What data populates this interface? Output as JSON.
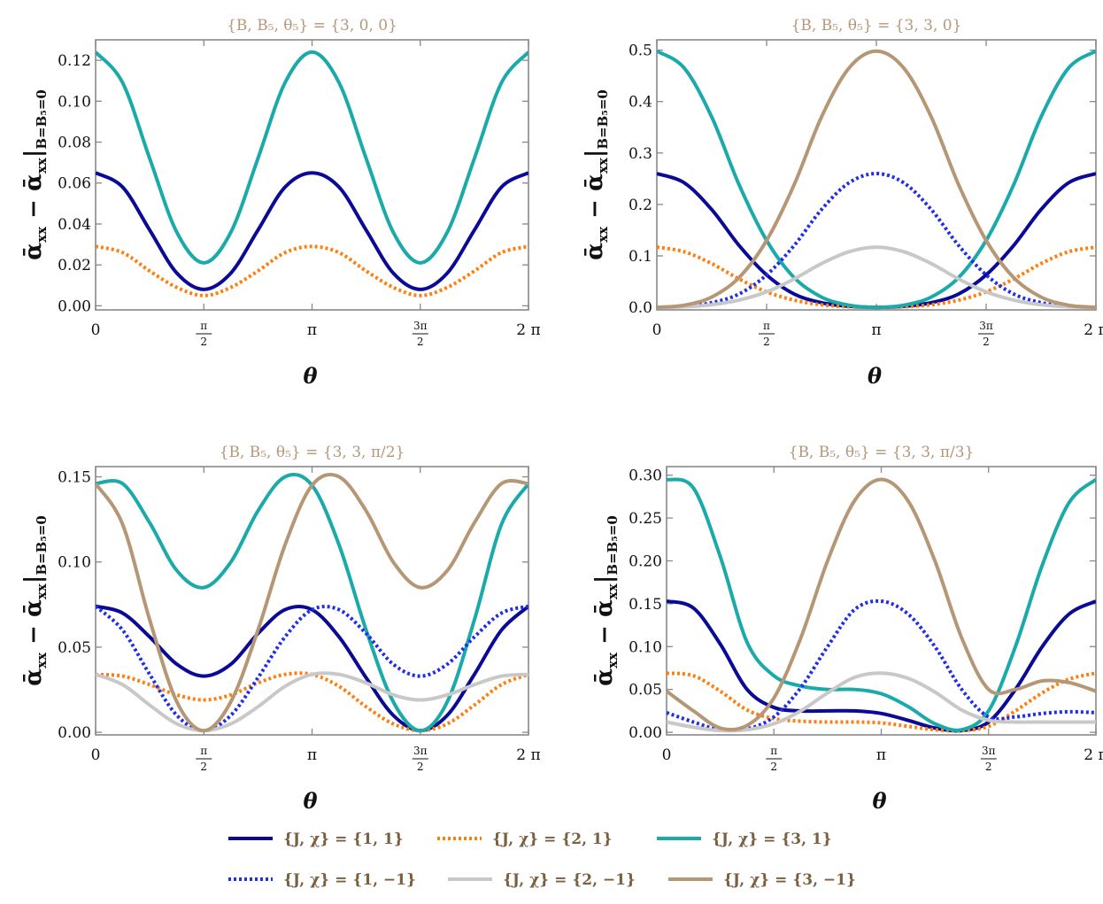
{
  "figure": {
    "ylabel_main": "ᾱ",
    "ylabel_sub1": "xx",
    "ylabel_minus": "−",
    "ylabel_sub2": "xx",
    "ylabel_cond": "B=B₅=0",
    "xlabel": "θ"
  },
  "colors": {
    "J1_chi1": "#0a0a96",
    "J2_chi1": "#ff7f0e",
    "J3_chi1": "#1aaaaa",
    "J1_chim1": "#1f2ee8",
    "J2_chim1": "#c8c8c8",
    "J3_chim1": "#b59775",
    "title": "#b5977a",
    "legend_text": "#7a6040"
  },
  "legend": [
    {
      "label": "{J, χ} = {1, 1}",
      "color": "#0a0a96",
      "style": "solid"
    },
    {
      "label": "{J, χ} = {2, 1}",
      "color": "#ff7f0e",
      "style": "dotted"
    },
    {
      "label": "{J, χ} = {3, 1}",
      "color": "#1aaaaa",
      "style": "solid"
    },
    {
      "label": "{J, χ} = {1, −1}",
      "color": "#1f2ee8",
      "style": "dotted"
    },
    {
      "label": "{J, χ} = {2, −1}",
      "color": "#c8c8c8",
      "style": "solid"
    },
    {
      "label": "{J, χ} = {3, −1}",
      "color": "#b59775",
      "style": "solid"
    }
  ],
  "chart_data": [
    {
      "type": "line",
      "title": "{B, B₅, θ₅} = {3, 0, 0}",
      "xlabel": "θ",
      "ylabel": "ᾱxx − ᾱxx|B=B₅=0",
      "xlim": [
        0,
        6.2832
      ],
      "ylim": [
        -0.002,
        0.13
      ],
      "xticks": [
        "0",
        "π/2",
        "π",
        "3π/2",
        "2π"
      ],
      "yticks": [
        "0.00",
        "0.02",
        "0.04",
        "0.06",
        "0.08",
        "0.10",
        "0.12"
      ],
      "yticks_values": [
        0,
        0.02,
        0.04,
        0.06,
        0.08,
        0.1,
        0.12
      ],
      "x": [
        0,
        0.3927,
        0.7854,
        1.1781,
        1.5708,
        1.9635,
        2.3562,
        2.7489,
        3.1416,
        3.5343,
        3.927,
        4.3197,
        4.7124,
        5.1051,
        5.4978,
        5.8905,
        6.2832
      ],
      "series": [
        {
          "name": "{J, χ} = {1, 1}",
          "color": "#0a0a96",
          "style": "solid",
          "values": [
            0.065,
            0.058,
            0.037,
            0.016,
            0.008,
            0.016,
            0.037,
            0.058,
            0.065,
            0.058,
            0.037,
            0.016,
            0.008,
            0.016,
            0.037,
            0.058,
            0.065
          ]
        },
        {
          "name": "{J, χ} = {2, 1}",
          "color": "#ff7f0e",
          "style": "dotted",
          "values": [
            0.029,
            0.026,
            0.017,
            0.009,
            0.005,
            0.009,
            0.017,
            0.026,
            0.029,
            0.026,
            0.017,
            0.009,
            0.005,
            0.009,
            0.017,
            0.026,
            0.029
          ]
        },
        {
          "name": "{J, χ} = {3, 1}",
          "color": "#1aaaaa",
          "style": "solid",
          "values": [
            0.124,
            0.109,
            0.072,
            0.036,
            0.021,
            0.036,
            0.072,
            0.109,
            0.124,
            0.109,
            0.072,
            0.036,
            0.021,
            0.036,
            0.072,
            0.109,
            0.124
          ]
        }
      ]
    },
    {
      "type": "line",
      "title": "{B, B₅, θ₅} = {3, 3, 0}",
      "xlabel": "θ",
      "ylabel": "ᾱxx − ᾱxx|B=B₅=0",
      "xlim": [
        0,
        6.2832
      ],
      "ylim": [
        -0.005,
        0.52
      ],
      "xticks": [
        "0",
        "π/2",
        "π",
        "3π/2",
        "2π"
      ],
      "yticks": [
        "0.0",
        "0.1",
        "0.2",
        "0.3",
        "0.4",
        "0.5"
      ],
      "yticks_values": [
        0,
        0.1,
        0.2,
        0.3,
        0.4,
        0.5
      ],
      "x": [
        0,
        0.3927,
        0.7854,
        1.1781,
        1.5708,
        1.9635,
        2.3562,
        2.7489,
        3.1416,
        3.5343,
        3.927,
        4.3197,
        4.7124,
        5.1051,
        5.4978,
        5.8905,
        6.2832
      ],
      "series": [
        {
          "name": "{J, χ} = {1, 1}",
          "color": "#0a0a96",
          "style": "solid",
          "values": [
            0.26,
            0.242,
            0.19,
            0.12,
            0.063,
            0.026,
            0.009,
            0.002,
            0.0,
            0.002,
            0.009,
            0.026,
            0.063,
            0.12,
            0.19,
            0.242,
            0.26
          ]
        },
        {
          "name": "{J, χ} = {2, 1}",
          "color": "#ff7f0e",
          "style": "dotted",
          "values": [
            0.117,
            0.108,
            0.085,
            0.055,
            0.03,
            0.014,
            0.005,
            0.001,
            0.0,
            0.001,
            0.005,
            0.014,
            0.03,
            0.055,
            0.085,
            0.108,
            0.117
          ]
        },
        {
          "name": "{J, χ} = {3, 1}",
          "color": "#1aaaaa",
          "style": "solid",
          "values": [
            0.498,
            0.465,
            0.37,
            0.238,
            0.13,
            0.058,
            0.02,
            0.004,
            0.0,
            0.004,
            0.02,
            0.058,
            0.13,
            0.238,
            0.37,
            0.465,
            0.498
          ]
        },
        {
          "name": "{J, χ} = {1, −1}",
          "color": "#1f2ee8",
          "style": "dotted",
          "values": [
            0.0,
            0.002,
            0.009,
            0.026,
            0.063,
            0.12,
            0.19,
            0.242,
            0.26,
            0.242,
            0.19,
            0.12,
            0.063,
            0.026,
            0.009,
            0.002,
            0.0
          ]
        },
        {
          "name": "{J, χ} = {2, −1}",
          "color": "#c8c8c8",
          "style": "solid",
          "values": [
            0.0,
            0.001,
            0.005,
            0.014,
            0.03,
            0.055,
            0.085,
            0.108,
            0.117,
            0.108,
            0.085,
            0.055,
            0.03,
            0.014,
            0.005,
            0.001,
            0.0
          ]
        },
        {
          "name": "{J, χ} = {3, −1}",
          "color": "#b59775",
          "style": "solid",
          "values": [
            0.0,
            0.004,
            0.02,
            0.058,
            0.13,
            0.238,
            0.37,
            0.465,
            0.498,
            0.465,
            0.37,
            0.238,
            0.13,
            0.058,
            0.02,
            0.004,
            0.0
          ]
        }
      ]
    },
    {
      "type": "line",
      "title": "{B, B₅, θ₅} = {3, 3, π/2}",
      "xlabel": "θ",
      "ylabel": "ᾱxx − ᾱxx|B=B₅=0",
      "xlim": [
        0,
        6.2832
      ],
      "ylim": [
        -0.0015,
        0.156
      ],
      "xticks": [
        "0",
        "π/2",
        "π",
        "3π/2",
        "2π"
      ],
      "yticks": [
        "0.00",
        "0.05",
        "0.10",
        "0.15"
      ],
      "yticks_values": [
        0,
        0.05,
        0.1,
        0.15
      ],
      "x": [
        0,
        0.3927,
        0.7854,
        1.1781,
        1.5708,
        1.9635,
        2.3562,
        2.7489,
        3.1416,
        3.5343,
        3.927,
        4.3197,
        4.7124,
        5.1051,
        5.4978,
        5.8905,
        6.2832
      ],
      "series": [
        {
          "name": "{J, χ} = {1, 1}",
          "color": "#0a0a96",
          "style": "solid",
          "values": [
            0.074,
            0.07,
            0.056,
            0.04,
            0.033,
            0.04,
            0.058,
            0.072,
            0.072,
            0.056,
            0.032,
            0.01,
            0.001,
            0.01,
            0.034,
            0.06,
            0.074
          ]
        },
        {
          "name": "{J, χ} = {2, 1}",
          "color": "#ff7f0e",
          "style": "dotted",
          "values": [
            0.034,
            0.033,
            0.028,
            0.022,
            0.019,
            0.022,
            0.029,
            0.034,
            0.034,
            0.027,
            0.015,
            0.005,
            0.001,
            0.005,
            0.016,
            0.028,
            0.034
          ]
        },
        {
          "name": "{J, χ} = {3, 1}",
          "color": "#1aaaaa",
          "style": "solid",
          "values": [
            0.146,
            0.146,
            0.123,
            0.095,
            0.085,
            0.1,
            0.13,
            0.15,
            0.145,
            0.11,
            0.06,
            0.018,
            0.001,
            0.018,
            0.066,
            0.122,
            0.146
          ]
        },
        {
          "name": "{J, χ} = {1, −1}",
          "color": "#1f2ee8",
          "style": "dotted",
          "values": [
            0.074,
            0.06,
            0.034,
            0.01,
            0.001,
            0.01,
            0.032,
            0.056,
            0.072,
            0.072,
            0.058,
            0.04,
            0.033,
            0.04,
            0.056,
            0.07,
            0.074
          ]
        },
        {
          "name": "{J, χ} = {2, −1}",
          "color": "#c8c8c8",
          "style": "solid",
          "values": [
            0.034,
            0.028,
            0.016,
            0.005,
            0.001,
            0.005,
            0.015,
            0.027,
            0.034,
            0.034,
            0.029,
            0.022,
            0.019,
            0.022,
            0.028,
            0.033,
            0.034
          ]
        },
        {
          "name": "{J, χ} = {3, −1}",
          "color": "#b59775",
          "style": "solid",
          "values": [
            0.146,
            0.122,
            0.066,
            0.018,
            0.001,
            0.018,
            0.06,
            0.11,
            0.145,
            0.15,
            0.13,
            0.1,
            0.085,
            0.095,
            0.123,
            0.146,
            0.146
          ]
        }
      ]
    },
    {
      "type": "line",
      "title": "{B, B₅, θ₅} = {3, 3, π/3}",
      "xlabel": "θ",
      "ylabel": "ᾱxx − ᾱxx|B=B₅=0",
      "xlim": [
        0,
        6.2832
      ],
      "ylim": [
        -0.003,
        0.31
      ],
      "xticks": [
        "0",
        "π/2",
        "π",
        "3π/2",
        "2π"
      ],
      "yticks": [
        "0.00",
        "0.05",
        "0.10",
        "0.15",
        "0.20",
        "0.25",
        "0.30"
      ],
      "yticks_values": [
        0,
        0.05,
        0.1,
        0.15,
        0.2,
        0.25,
        0.3
      ],
      "x": [
        0,
        0.3927,
        0.7854,
        1.1781,
        1.5708,
        1.9635,
        2.3562,
        2.7489,
        3.1416,
        3.5343,
        3.927,
        4.3197,
        4.7124,
        5.1051,
        5.4978,
        5.8905,
        6.2832
      ],
      "series": [
        {
          "name": "{J, χ} = {1, 1}",
          "color": "#0a0a96",
          "style": "solid",
          "values": [
            0.153,
            0.145,
            0.103,
            0.05,
            0.029,
            0.025,
            0.025,
            0.025,
            0.022,
            0.014,
            0.005,
            0.002,
            0.012,
            0.05,
            0.1,
            0.138,
            0.153
          ]
        },
        {
          "name": "{J, χ} = {2, 1}",
          "color": "#ff7f0e",
          "style": "dotted",
          "values": [
            0.069,
            0.066,
            0.048,
            0.026,
            0.016,
            0.013,
            0.012,
            0.012,
            0.011,
            0.007,
            0.003,
            0.002,
            0.007,
            0.025,
            0.046,
            0.062,
            0.069
          ]
        },
        {
          "name": "{J, χ} = {3, 1}",
          "color": "#1aaaaa",
          "style": "solid",
          "values": [
            0.295,
            0.285,
            0.205,
            0.105,
            0.066,
            0.054,
            0.05,
            0.05,
            0.045,
            0.03,
            0.01,
            0.003,
            0.025,
            0.1,
            0.195,
            0.268,
            0.295
          ]
        },
        {
          "name": "{J, χ} = {1, −1}",
          "color": "#1f2ee8",
          "style": "dotted",
          "values": [
            0.023,
            0.012,
            0.003,
            0.004,
            0.018,
            0.052,
            0.1,
            0.143,
            0.153,
            0.138,
            0.1,
            0.05,
            0.018,
            0.018,
            0.022,
            0.024,
            0.023
          ]
        },
        {
          "name": "{J, χ} = {2, −1}",
          "color": "#c8c8c8",
          "style": "solid",
          "values": [
            0.012,
            0.006,
            0.002,
            0.003,
            0.01,
            0.025,
            0.046,
            0.064,
            0.069,
            0.063,
            0.047,
            0.026,
            0.014,
            0.012,
            0.012,
            0.012,
            0.012
          ]
        },
        {
          "name": "{J, χ} = {3, −1}",
          "color": "#b59775",
          "style": "solid",
          "values": [
            0.048,
            0.025,
            0.005,
            0.008,
            0.04,
            0.11,
            0.2,
            0.27,
            0.295,
            0.27,
            0.2,
            0.11,
            0.05,
            0.05,
            0.06,
            0.058,
            0.048
          ]
        }
      ]
    }
  ]
}
